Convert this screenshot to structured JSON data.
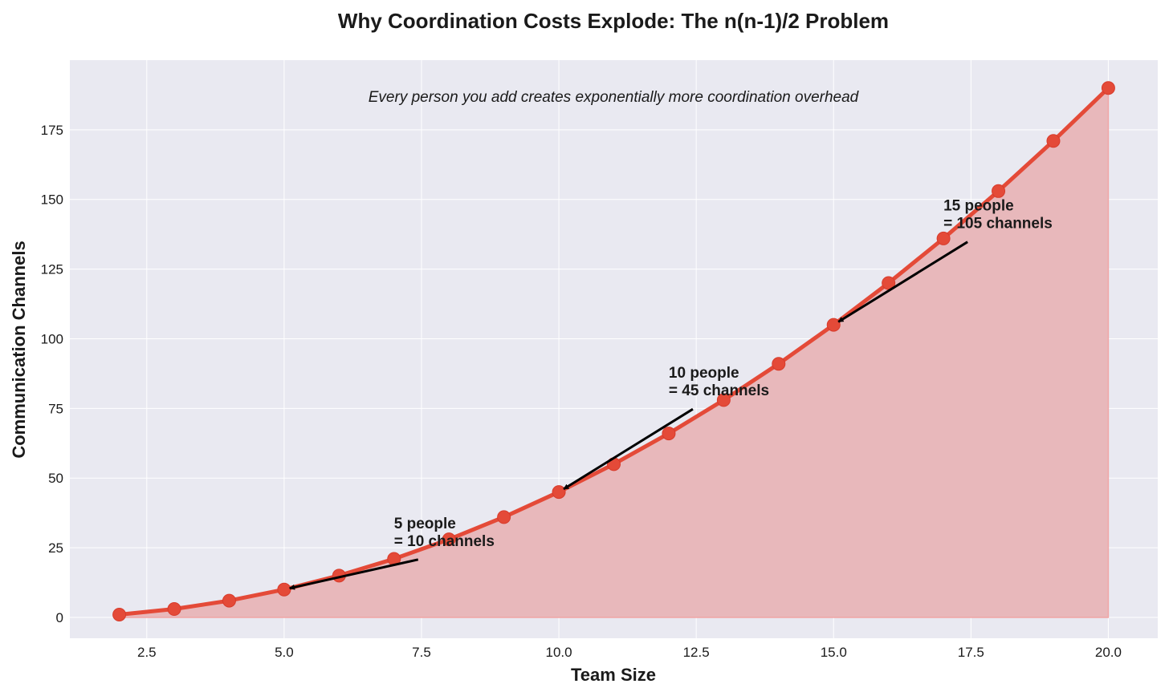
{
  "chart_data": {
    "type": "area",
    "title": "Why Coordination Costs Explode: The n(n-1)/2 Problem",
    "subtitle": "Every person you add creates exponentially more coordination overhead",
    "xlabel": "Team Size",
    "ylabel": "Communication Channels",
    "xlim": [
      1.1,
      20.9
    ],
    "ylim": [
      -7.5,
      200
    ],
    "x_ticks": [
      2.5,
      5.0,
      7.5,
      10.0,
      12.5,
      15.0,
      17.5,
      20.0
    ],
    "x_tick_labels": [
      "2.5",
      "5.0",
      "7.5",
      "10.0",
      "12.5",
      "15.0",
      "17.5",
      "20.0"
    ],
    "y_ticks": [
      0,
      25,
      50,
      75,
      100,
      125,
      150,
      175
    ],
    "y_tick_labels": [
      "0",
      "25",
      "50",
      "75",
      "100",
      "125",
      "150",
      "175"
    ],
    "grid": true,
    "colors": {
      "line": "#e44a38",
      "fill": "#e8b8bb",
      "plot_bg": "#e9e9f1",
      "grid": "#ffffff",
      "arrow": "#000000"
    },
    "series": [
      {
        "name": "Communication Channels",
        "x": [
          2,
          3,
          4,
          5,
          6,
          7,
          8,
          9,
          10,
          11,
          12,
          13,
          14,
          15,
          16,
          17,
          18,
          19,
          20
        ],
        "values": [
          1,
          3,
          6,
          10,
          15,
          21,
          28,
          36,
          45,
          55,
          66,
          78,
          91,
          105,
          120,
          136,
          153,
          171,
          190
        ]
      }
    ],
    "annotations": [
      {
        "line1": "5 people",
        "line2": "= 10 channels",
        "point": [
          5,
          10
        ],
        "text_at": [
          7,
          34
        ]
      },
      {
        "line1": "10 people",
        "line2": "= 45 channels",
        "point": [
          10,
          45
        ],
        "text_at": [
          12,
          88
        ]
      },
      {
        "line1": "15 people",
        "line2": "= 105 channels",
        "point": [
          15,
          105
        ],
        "text_at": [
          17,
          148
        ]
      }
    ]
  }
}
